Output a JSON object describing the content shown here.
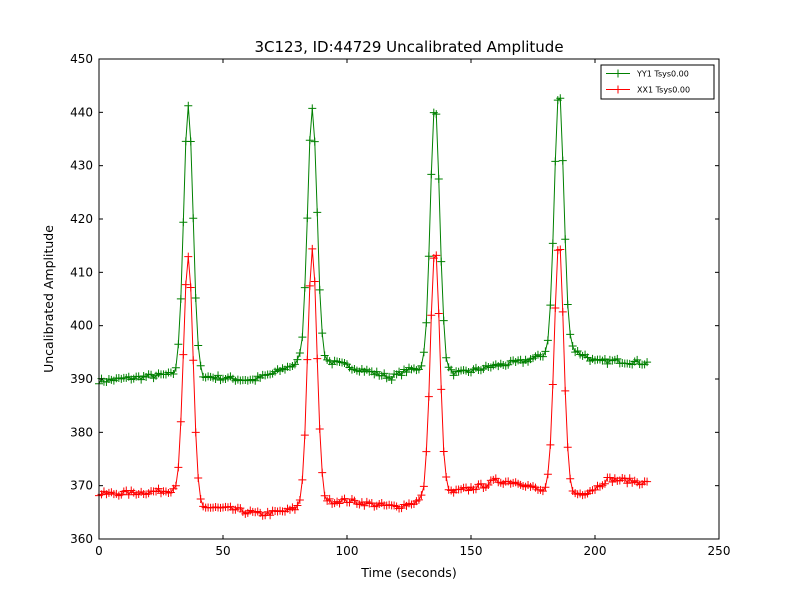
{
  "chart_data": {
    "type": "line",
    "title": "3C123, ID:44729 Uncalibrated Amplitude",
    "xlabel": "Time (seconds)",
    "ylabel": "Uncalibrated Amplitude",
    "xlim": [
      0,
      250
    ],
    "ylim": [
      360,
      450
    ],
    "xticks": [
      "0",
      "50",
      "100",
      "150",
      "200",
      "250"
    ],
    "yticks": [
      "360",
      "370",
      "380",
      "390",
      "400",
      "410",
      "420",
      "430",
      "440",
      "450"
    ],
    "grid": false,
    "legend_position": "top-right",
    "marker": "+",
    "x": {
      "start": 0,
      "end": 221,
      "step": 1
    },
    "series": [
      {
        "name": "YY1 Tsys0.00",
        "color": "#008000",
        "baseline_knots": [
          [
            0,
            389.6
          ],
          [
            28,
            390.8
          ],
          [
            33,
            390.6
          ],
          [
            42,
            390.5
          ],
          [
            55,
            390.0
          ],
          [
            62,
            389.8
          ],
          [
            70,
            391.0
          ],
          [
            80,
            393.0
          ],
          [
            84,
            393.0
          ],
          [
            92,
            393.3
          ],
          [
            100,
            392.5
          ],
          [
            112,
            391.0
          ],
          [
            118,
            390.3
          ],
          [
            124,
            391.6
          ],
          [
            130,
            392.0
          ],
          [
            145,
            391.0
          ],
          [
            150,
            391.5
          ],
          [
            160,
            392.5
          ],
          [
            170,
            393.2
          ],
          [
            180,
            394.5
          ],
          [
            190,
            395.6
          ],
          [
            196,
            394.4
          ],
          [
            200,
            393.2
          ],
          [
            210,
            393.4
          ],
          [
            221,
            393.0
          ]
        ],
        "peaks": [
          {
            "center": 36,
            "peak": 441.3
          },
          {
            "center": 86,
            "peak": 441.1
          },
          {
            "center": 135.5,
            "peak": 441.4
          },
          {
            "center": 185.5,
            "peak": 444.0
          }
        ],
        "peak_width_s": 1.9,
        "noise": 0.5
      },
      {
        "name": "XX1 Tsys0.00",
        "color": "#ff0000",
        "baseline_knots": [
          [
            0,
            368.4
          ],
          [
            20,
            368.8
          ],
          [
            30,
            369.2
          ],
          [
            33,
            368.5
          ],
          [
            41,
            366.0
          ],
          [
            55,
            365.5
          ],
          [
            65,
            364.6
          ],
          [
            75,
            365.2
          ],
          [
            82,
            366.0
          ],
          [
            91,
            367.0
          ],
          [
            100,
            367.2
          ],
          [
            110,
            366.5
          ],
          [
            120,
            366.0
          ],
          [
            130,
            367.2
          ],
          [
            145,
            369.0
          ],
          [
            155,
            370.0
          ],
          [
            160,
            370.9
          ],
          [
            170,
            370.6
          ],
          [
            178,
            369.0
          ],
          [
            190,
            368.3
          ],
          [
            195,
            368.6
          ],
          [
            200,
            369.5
          ],
          [
            205,
            371.2
          ],
          [
            212,
            371.0
          ],
          [
            221,
            370.5
          ]
        ],
        "peaks": [
          {
            "center": 36,
            "peak": 413.0
          },
          {
            "center": 86,
            "peak": 414.0
          },
          {
            "center": 135.5,
            "peak": 414.4
          },
          {
            "center": 185.5,
            "peak": 415.6
          }
        ],
        "peak_width_s": 1.9,
        "noise": 0.5
      }
    ]
  }
}
